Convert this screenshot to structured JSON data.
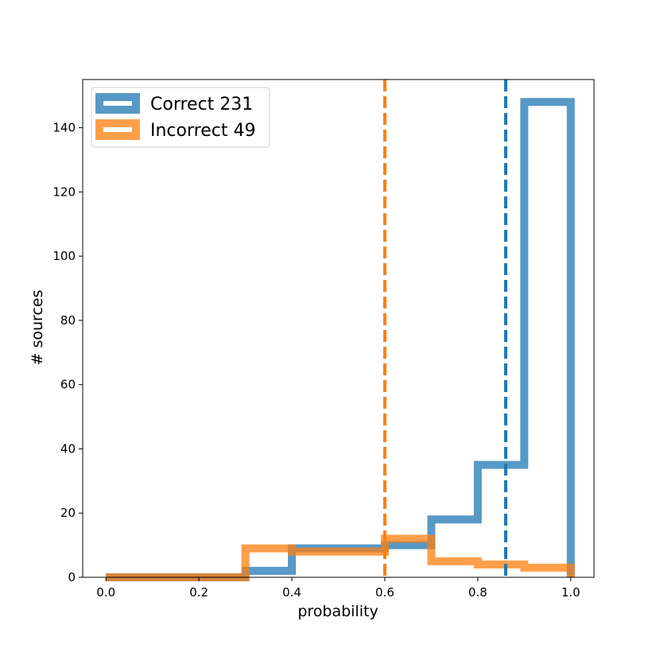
{
  "chart_data": {
    "type": "histogram",
    "xlabel": "probability",
    "ylabel": "# sources",
    "xlim": [
      -0.05,
      1.05
    ],
    "ylim": [
      0,
      155
    ],
    "xticks": [
      0.0,
      0.2,
      0.4,
      0.6,
      0.8,
      1.0
    ],
    "xtick_labels": [
      "0.0",
      "0.2",
      "0.4",
      "0.6",
      "0.8",
      "1.0"
    ],
    "yticks": [
      0,
      20,
      40,
      60,
      80,
      100,
      120,
      140
    ],
    "ytick_labels": [
      "0",
      "20",
      "40",
      "60",
      "80",
      "100",
      "120",
      "140"
    ],
    "bin_edges": [
      0.0,
      0.1,
      0.2,
      0.3,
      0.4,
      0.5,
      0.6,
      0.7,
      0.8,
      0.9,
      1.0
    ],
    "series": [
      {
        "name": "Correct 231",
        "color": "#1f77b4",
        "counts": [
          0,
          0,
          0,
          2,
          9,
          9,
          10,
          18,
          35,
          148
        ],
        "mean_line": 0.86
      },
      {
        "name": "Incorrect 49",
        "color": "#ff7f0e",
        "counts": [
          0,
          0,
          0,
          9,
          8,
          8,
          12,
          5,
          4,
          3
        ],
        "mean_line": 0.6
      }
    ],
    "legend_position": "top-left",
    "grid": false
  }
}
